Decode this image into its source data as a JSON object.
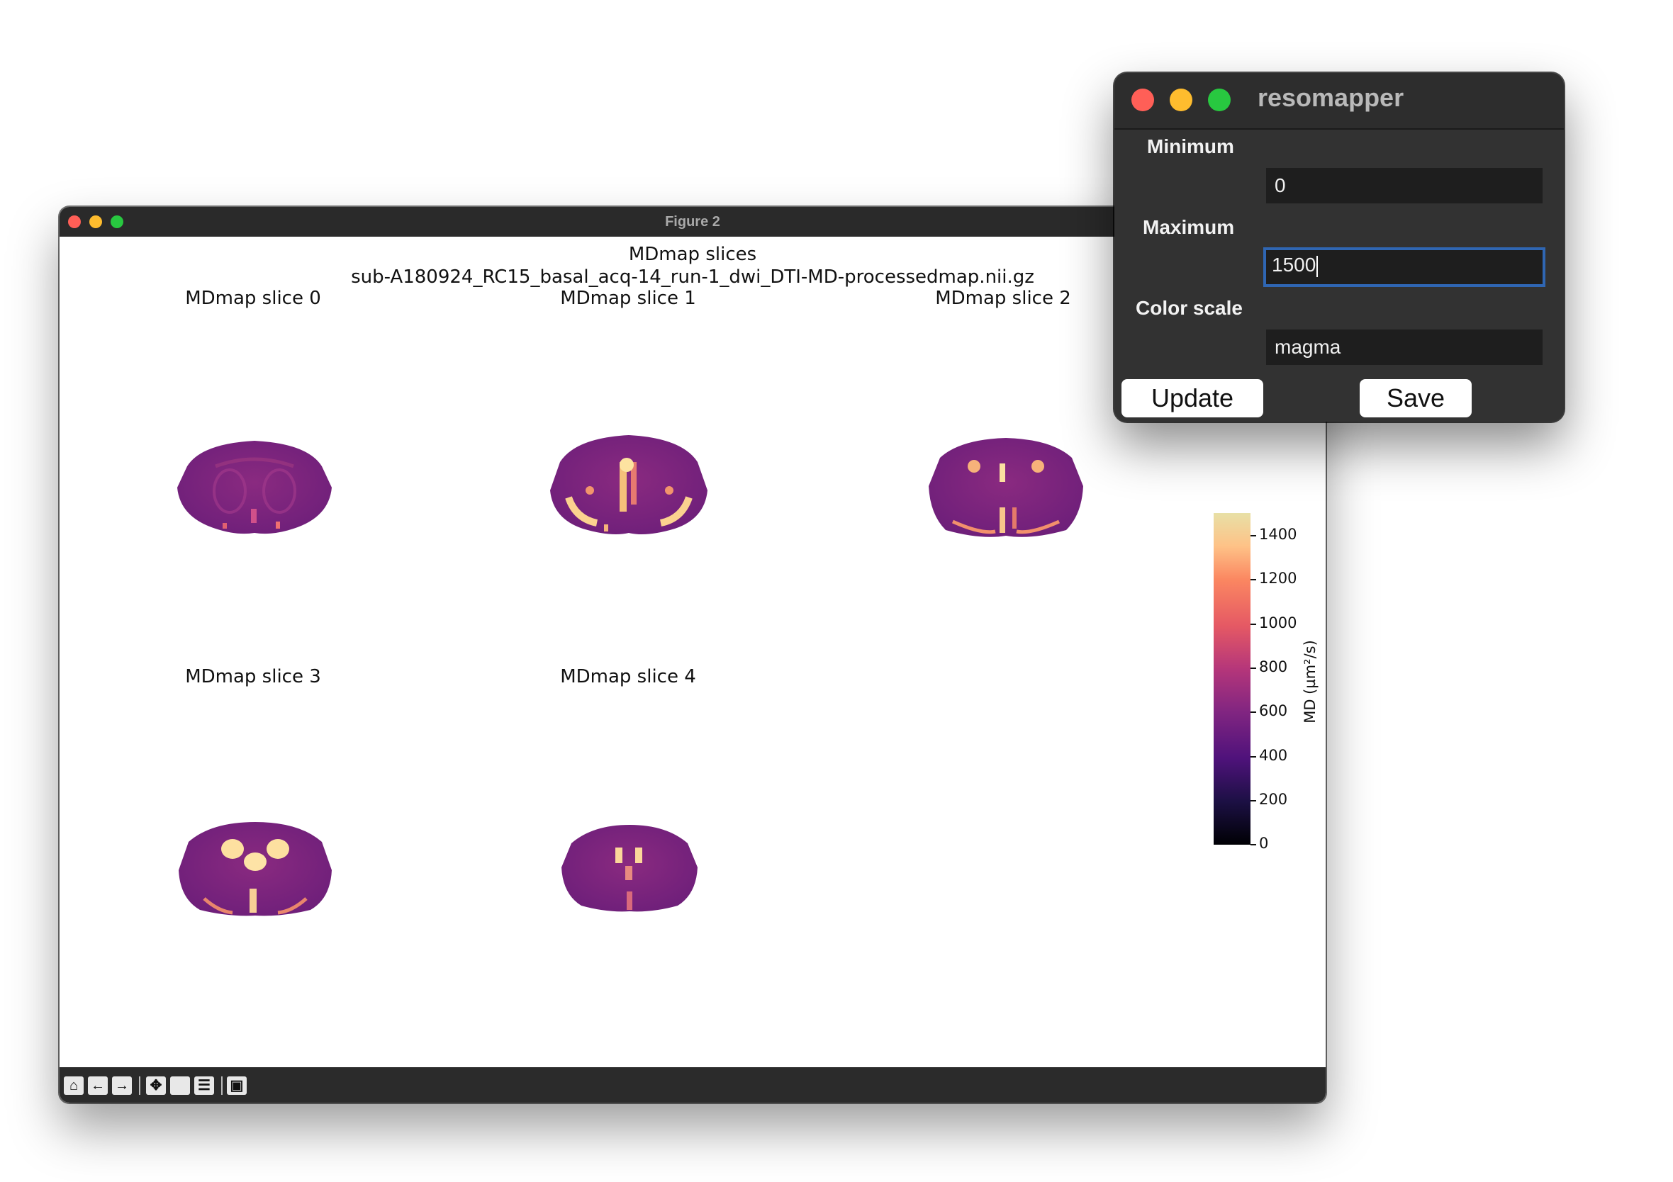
{
  "figure_window": {
    "title": "Figure 2",
    "suptitle_line1": "MDmap slices",
    "suptitle_line2": "sub-A180924_RC15_basal_acq-14_run-1_dwi_DTI-MD-processedmap.nii.gz",
    "axes": [
      {
        "title": "MDmap slice 0"
      },
      {
        "title": "MDmap slice 1"
      },
      {
        "title": "MDmap slice 2"
      },
      {
        "title": "MDmap slice 3"
      },
      {
        "title": "MDmap slice 4"
      }
    ],
    "colorbar": {
      "label": "MD (µm²/s)",
      "colormap": "magma",
      "ticks": [
        "1400",
        "1200",
        "1000",
        "800",
        "600",
        "400",
        "200",
        "0"
      ],
      "range": [
        0,
        1500
      ]
    },
    "toolbar": [
      "home-icon",
      "back-arrow-icon",
      "forward-arrow-icon",
      "pan-icon",
      "zoom-icon",
      "configure-subplots-icon",
      "save-icon"
    ]
  },
  "resomapper": {
    "title": "resomapper",
    "minimum_label": "Minimum",
    "minimum_value": "0",
    "maximum_label": "Maximum",
    "maximum_value": "1500",
    "color_scale_label": "Color scale",
    "color_scale_value": "magma",
    "update_label": "Update",
    "save_label": "Save"
  },
  "colors": {
    "close": "#ff5f57",
    "minimize": "#febc2e",
    "maximize": "#28c840",
    "focus_ring": "#2f66b3"
  }
}
